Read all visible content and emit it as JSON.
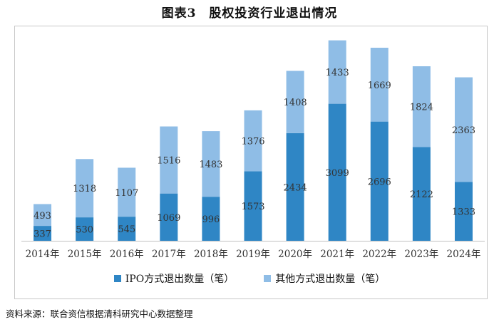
{
  "title": "图表3　股权投资行业退出情况",
  "source": "资料来源：联合资信根据清科研究中心数据整理",
  "colors": {
    "ipo": "#2f86c5",
    "other": "#8fbde6",
    "text": "#333333",
    "axis": "#c0c0c0"
  },
  "chart_data": {
    "type": "bar",
    "stacked": true,
    "title": "股权投资行业退出情况",
    "categories": [
      "2014年",
      "2015年",
      "2016年",
      "2017年",
      "2018年",
      "2019年",
      "2020年",
      "2021年",
      "2022年",
      "2023年",
      "2024年"
    ],
    "series": [
      {
        "name": "IPO方式退出数量（笔）",
        "values": [
          337,
          530,
          545,
          1069,
          996,
          1573,
          2434,
          3099,
          2696,
          2122,
          1333
        ]
      },
      {
        "name": "其他方式退出数量（笔）",
        "values": [
          493,
          1318,
          1107,
          1516,
          1483,
          1376,
          1408,
          1433,
          1669,
          1824,
          2363
        ]
      }
    ],
    "ylim": [
      0,
      4800
    ],
    "legend_position": "bottom",
    "grid": false
  }
}
